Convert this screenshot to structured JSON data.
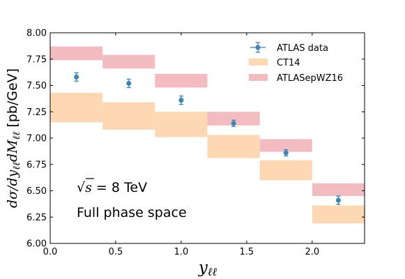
{
  "chart_data": {
    "type": "scatter",
    "xlabel": "y",
    "xlabel_sub": "ℓℓ",
    "ylabel_main": "dσ/dy",
    "ylabel_sub1": "ℓℓ",
    "ylabel_mid": "dM",
    "ylabel_sub2": "ℓℓ",
    "ylabel_unit": " [pb/GeV]",
    "xlim": [
      0.0,
      2.4
    ],
    "ylim": [
      6.0,
      8.0
    ],
    "xticks": [
      0.0,
      0.5,
      1.0,
      1.5,
      2.0
    ],
    "xtick_labels": [
      "0.0",
      "0.5",
      "1.0",
      "1.5",
      "2.0"
    ],
    "yticks": [
      6.0,
      6.25,
      6.5,
      6.75,
      7.0,
      7.25,
      7.5,
      7.75,
      8.0
    ],
    "ytick_labels": [
      "6.00",
      "6.25",
      "6.50",
      "6.75",
      "7.00",
      "7.25",
      "7.50",
      "7.75",
      "8.00"
    ],
    "legend_position": "top-right",
    "grid": false,
    "series": [
      {
        "name": "ATLAS data",
        "kind": "points-with-errors",
        "color": "#3a84b8",
        "points": [
          {
            "x": 0.2,
            "y": 7.58,
            "err": 0.04
          },
          {
            "x": 0.6,
            "y": 7.52,
            "err": 0.04
          },
          {
            "x": 1.0,
            "y": 7.36,
            "err": 0.04
          },
          {
            "x": 1.4,
            "y": 7.14,
            "err": 0.03
          },
          {
            "x": 1.8,
            "y": 6.86,
            "err": 0.03
          },
          {
            "x": 2.2,
            "y": 6.41,
            "err": 0.04
          }
        ]
      },
      {
        "name": "CT14",
        "kind": "bands",
        "color": "#fdd8b3",
        "bands": [
          {
            "x0": 0.0,
            "x1": 0.4,
            "ylo": 7.15,
            "yhi": 7.43
          },
          {
            "x0": 0.4,
            "x1": 0.8,
            "ylo": 7.08,
            "yhi": 7.34
          },
          {
            "x0": 0.8,
            "x1": 1.2,
            "ylo": 7.01,
            "yhi": 7.25
          },
          {
            "x0": 1.2,
            "x1": 1.6,
            "ylo": 6.81,
            "yhi": 7.03
          },
          {
            "x0": 1.6,
            "x1": 2.0,
            "ylo": 6.6,
            "yhi": 6.79
          },
          {
            "x0": 2.0,
            "x1": 2.4,
            "ylo": 6.19,
            "yhi": 6.36
          }
        ]
      },
      {
        "name": "ATLASepWZ16",
        "kind": "bands",
        "color": "#f2bcc1",
        "bands": [
          {
            "x0": 0.0,
            "x1": 0.4,
            "ylo": 7.74,
            "yhi": 7.87
          },
          {
            "x0": 0.4,
            "x1": 0.8,
            "ylo": 7.66,
            "yhi": 7.79
          },
          {
            "x0": 0.8,
            "x1": 1.2,
            "ylo": 7.48,
            "yhi": 7.61
          },
          {
            "x0": 1.2,
            "x1": 1.6,
            "ylo": 7.12,
            "yhi": 7.25
          },
          {
            "x0": 1.6,
            "x1": 2.0,
            "ylo": 6.87,
            "yhi": 6.99
          },
          {
            "x0": 2.0,
            "x1": 2.4,
            "ylo": 6.45,
            "yhi": 6.57
          }
        ]
      }
    ],
    "annotations": {
      "energy_sqrt": "√",
      "energy_s": "s",
      "energy_value": " = 8 TeV",
      "phase_space": "Full phase space"
    }
  }
}
